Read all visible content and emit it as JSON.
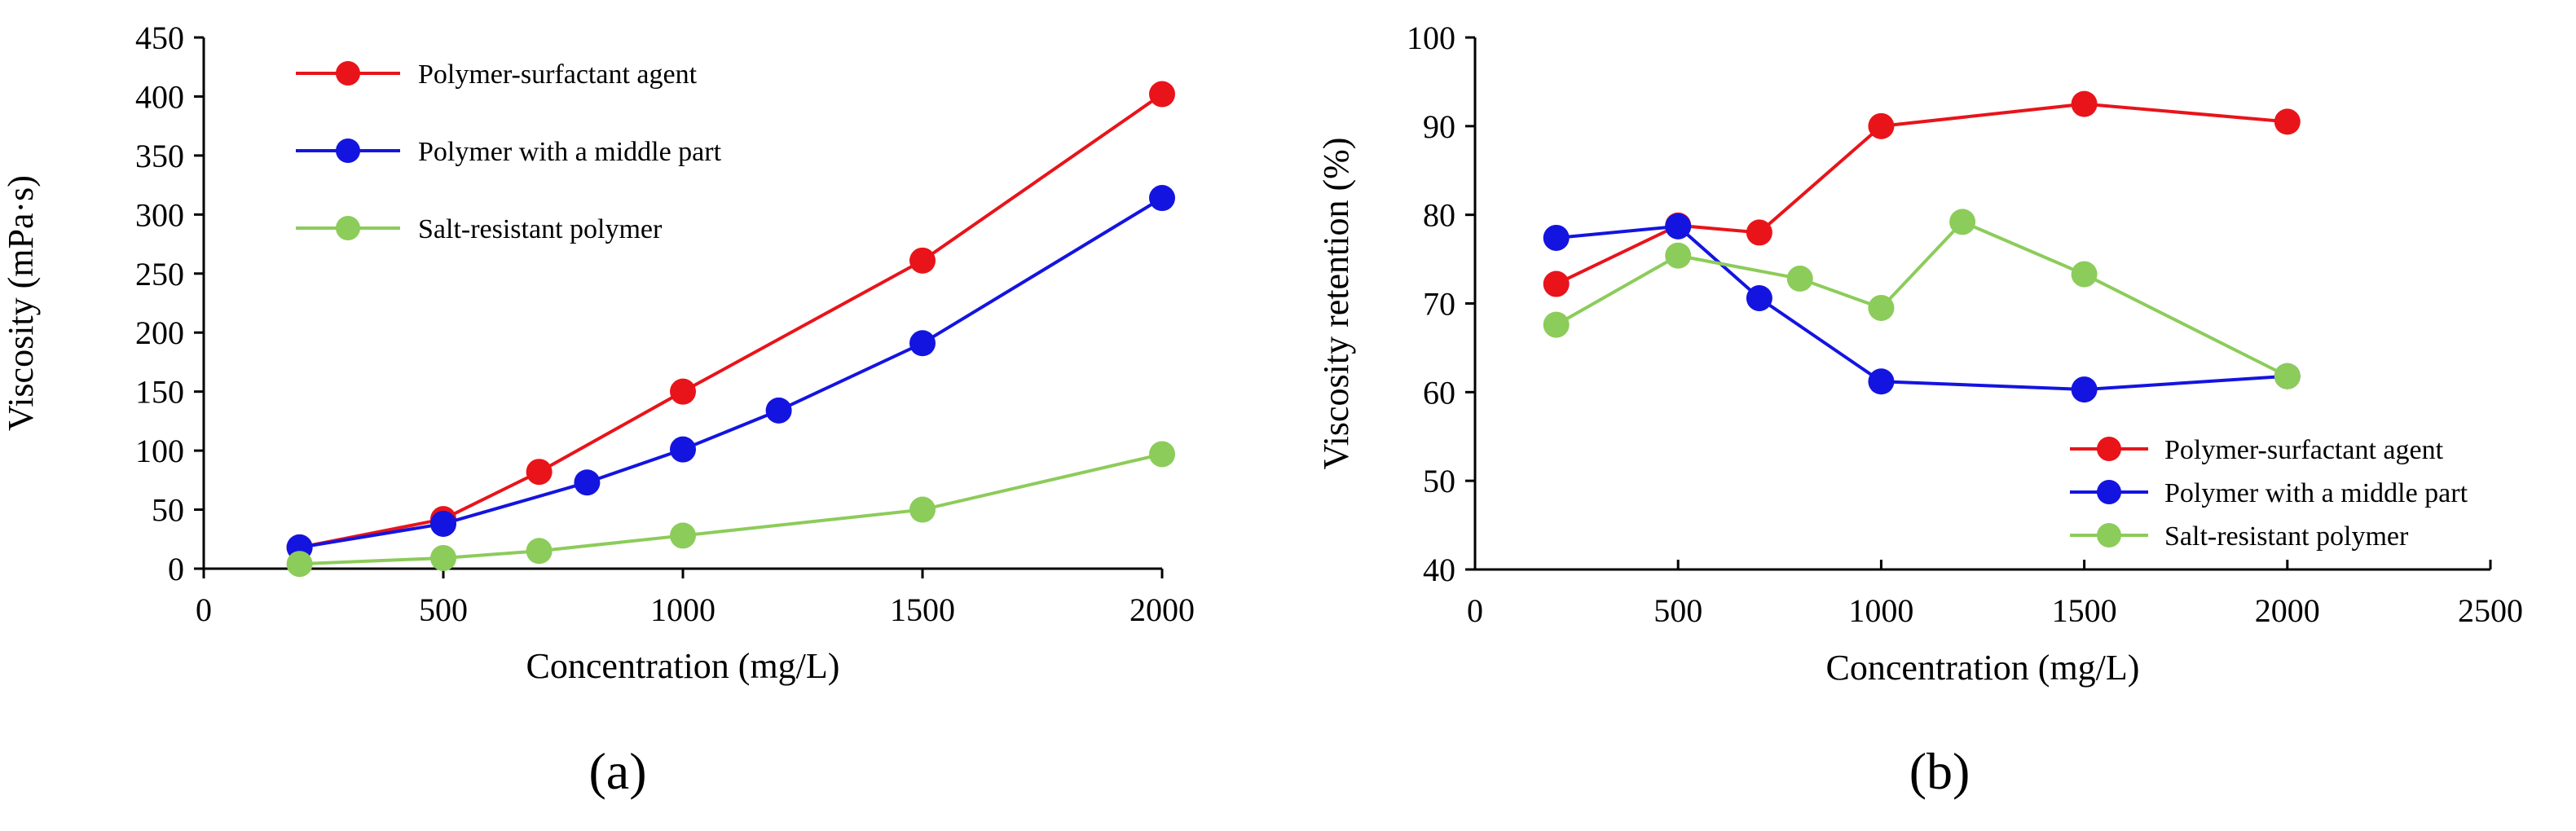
{
  "chart_data": [
    {
      "id": "a",
      "type": "line",
      "panel_label": "(a)",
      "xlabel": "Concentration (mg/L)",
      "ylabel": "Viscosity (mPa·s)",
      "xlim": [
        0,
        2000
      ],
      "ylim": [
        0,
        450
      ],
      "xticks": [
        0,
        500,
        1000,
        1500,
        2000
      ],
      "yticks": [
        0,
        50,
        100,
        150,
        200,
        250,
        300,
        350,
        400,
        450
      ],
      "legend_position": "top-left",
      "series": [
        {
          "name": "Polymer-surfactant agent",
          "color": "#e8141a",
          "x": [
            200,
            500,
            700,
            1000,
            1500,
            2000
          ],
          "y": [
            18,
            42,
            82,
            150,
            261,
            402
          ]
        },
        {
          "name": "Polymer with a middle part",
          "color": "#1414e0",
          "x": [
            200,
            500,
            800,
            1000,
            1200,
            1500,
            2000
          ],
          "y": [
            18,
            38,
            73,
            101,
            134,
            191,
            314
          ]
        },
        {
          "name": "Salt-resistant polymer",
          "color": "#8ccc5a",
          "x": [
            200,
            500,
            700,
            1000,
            1500,
            2000
          ],
          "y": [
            4,
            9,
            15,
            28,
            50,
            97
          ]
        }
      ]
    },
    {
      "id": "b",
      "type": "line",
      "panel_label": "(b)",
      "xlabel": "Concentration   (mg/L)",
      "ylabel": "Viscosity retention (%)",
      "xlim": [
        0,
        2500
      ],
      "ylim": [
        40,
        100
      ],
      "xticks": [
        0,
        500,
        1000,
        1500,
        2000,
        2500
      ],
      "yticks": [
        40,
        50,
        60,
        70,
        80,
        90,
        100
      ],
      "legend_position": "bottom-right",
      "series": [
        {
          "name": "Polymer-surfactant agent",
          "color": "#e8141a",
          "x": [
            200,
            500,
            700,
            1000,
            1500,
            2000
          ],
          "y": [
            72.2,
            78.8,
            78.0,
            90.0,
            92.5,
            90.5
          ]
        },
        {
          "name": "Polymer with a middle part",
          "color": "#1414e0",
          "x": [
            200,
            500,
            700,
            1000,
            1500,
            2000
          ],
          "y": [
            77.4,
            78.7,
            70.6,
            61.2,
            60.3,
            61.8
          ]
        },
        {
          "name": "Salt-resistant polymer",
          "color": "#8ccc5a",
          "x": [
            200,
            500,
            800,
            1000,
            1200,
            1500,
            2000
          ],
          "y": [
            67.6,
            75.4,
            72.8,
            69.5,
            79.2,
            73.3,
            61.8
          ]
        }
      ]
    }
  ]
}
